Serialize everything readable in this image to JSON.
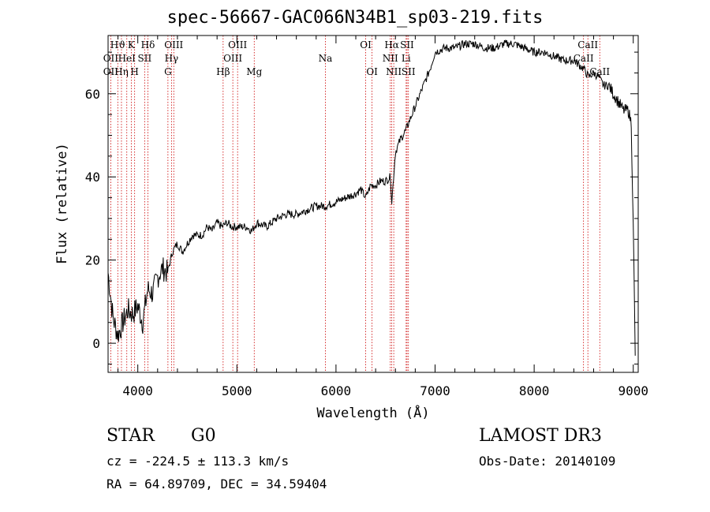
{
  "chart_data": {
    "type": "line",
    "title": "spec-56667-GAC066N34B1_sp03-219.fits",
    "xlabel": "Wavelength (Å)",
    "ylabel": "Flux (relative)",
    "xlim": [
      3700,
      9050
    ],
    "ylim": [
      -7,
      74
    ],
    "xticks": [
      4000,
      5000,
      6000,
      7000,
      8000,
      9000
    ],
    "yticks": [
      0,
      20,
      40,
      60
    ],
    "series": [
      {
        "name": "flux",
        "x": [
          3700,
          3750,
          3800,
          3850,
          3900,
          3950,
          4000,
          4050,
          4100,
          4150,
          4200,
          4250,
          4300,
          4350,
          4400,
          4450,
          4500,
          4550,
          4600,
          4650,
          4700,
          4750,
          4800,
          4850,
          4900,
          4950,
          5000,
          5050,
          5100,
          5150,
          5200,
          5300,
          5400,
          5500,
          5600,
          5700,
          5800,
          5900,
          6000,
          6100,
          6200,
          6250,
          6300,
          6350,
          6400,
          6450,
          6500,
          6550,
          6563,
          6600,
          6650,
          6700,
          6750,
          6800,
          6850,
          6900,
          6950,
          7000,
          7100,
          7200,
          7300,
          7400,
          7500,
          7600,
          7700,
          7800,
          7900,
          8000,
          8100,
          8200,
          8300,
          8400,
          8500,
          8550,
          8600,
          8650,
          8700,
          8750,
          8800,
          8850,
          8900,
          8950,
          8980,
          9000,
          9020
        ],
        "y": [
          17,
          6,
          2,
          5,
          8,
          7,
          9,
          5,
          13,
          12,
          16,
          18,
          17,
          22,
          24,
          22,
          24,
          26,
          26,
          26,
          28,
          27,
          29,
          28,
          29,
          28,
          28,
          28,
          28,
          27,
          29,
          28,
          30,
          31,
          31,
          32,
          33,
          33,
          34,
          35,
          36,
          37,
          35,
          38,
          38,
          39,
          39,
          40,
          34,
          46,
          49,
          51,
          54,
          57,
          60,
          63,
          66,
          70,
          71,
          71,
          72,
          72,
          71,
          71,
          72,
          72,
          71,
          70,
          70,
          69,
          68,
          68,
          66,
          64,
          65,
          64,
          62,
          62,
          60,
          58,
          56,
          56,
          53,
          28,
          -3
        ]
      }
    ],
    "lines": [
      {
        "label": "Hϑ",
        "wl": 3798,
        "row": 0
      },
      {
        "label": "K",
        "wl": 3934,
        "row": 0
      },
      {
        "label": "Hδ",
        "wl": 4102,
        "row": 0
      },
      {
        "label": "OIII",
        "wl": 4363,
        "row": 0
      },
      {
        "label": "OIII",
        "wl": 5007,
        "row": 0
      },
      {
        "label": "OI",
        "wl": 6300,
        "row": 0
      },
      {
        "label": "Hα",
        "wl": 6563,
        "row": 0
      },
      {
        "label": "SII",
        "wl": 6717,
        "row": 0
      },
      {
        "label": "CaII",
        "wl": 8542,
        "row": 0
      },
      {
        "label": "OII",
        "wl": 3727,
        "row": 1
      },
      {
        "label": "HeI",
        "wl": 3889,
        "row": 1
      },
      {
        "label": "SII",
        "wl": 4069,
        "row": 1
      },
      {
        "label": "Hγ",
        "wl": 4340,
        "row": 1
      },
      {
        "label": "OIII",
        "wl": 4959,
        "row": 1
      },
      {
        "label": "Na",
        "wl": 5893,
        "row": 1
      },
      {
        "label": "NII",
        "wl": 6548,
        "row": 1
      },
      {
        "label": "Li",
        "wl": 6708,
        "row": 1
      },
      {
        "label": "CaII",
        "wl": 8498,
        "row": 1
      },
      {
        "label": "OII",
        "wl": 3727,
        "row": 2
      },
      {
        "label": "Hη",
        "wl": 3835,
        "row": 2
      },
      {
        "label": "H",
        "wl": 3968,
        "row": 2
      },
      {
        "label": "G",
        "wl": 4304,
        "row": 2
      },
      {
        "label": "Hβ",
        "wl": 4861,
        "row": 2
      },
      {
        "label": "Mg",
        "wl": 5175,
        "row": 2
      },
      {
        "label": "OI",
        "wl": 6364,
        "row": 2
      },
      {
        "label": "NII",
        "wl": 6583,
        "row": 2
      },
      {
        "label": "SII",
        "wl": 6731,
        "row": 2
      },
      {
        "label": "CaII",
        "wl": 8662,
        "row": 2
      }
    ]
  },
  "info": {
    "object_class": "STAR",
    "subclass": "G0",
    "survey": "LAMOST DR3",
    "cz": "cz = -224.5 ± 113.3 km/s",
    "obs_date": "Obs-Date: 20140109",
    "coords": "RA =  64.89709, DEC =  34.59404"
  },
  "colors": {
    "axis": "#000000",
    "spectrum": "#000000",
    "line_marker": "#cc0000"
  }
}
